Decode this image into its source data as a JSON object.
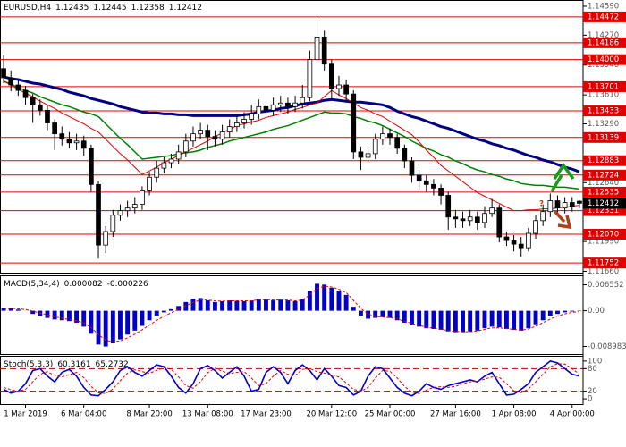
{
  "chart_data": [
    {
      "type": "candlestick",
      "title": "EURUSD,H4",
      "annotation": "?",
      "categories": [
        null,
        null,
        null,
        "1 Mar 2019",
        null,
        null,
        null,
        null,
        null,
        null,
        null,
        "6 Mar 04:00",
        null,
        null,
        null,
        null,
        null,
        null,
        null,
        null,
        "8 Mar 20:00",
        null,
        null,
        null,
        null,
        null,
        null,
        null,
        "13 Mar 08:00",
        null,
        null,
        null,
        null,
        null,
        null,
        null,
        "17 Mar 23:00",
        null,
        null,
        null,
        null,
        null,
        null,
        null,
        null,
        "20 Mar 12:00",
        null,
        null,
        null,
        null,
        null,
        null,
        null,
        "25 Mar 00:00",
        null,
        null,
        null,
        null,
        null,
        null,
        null,
        null,
        "27 Mar 16:00",
        null,
        null,
        null,
        null,
        null,
        null,
        null,
        "1 Apr 08:00",
        null,
        null,
        null,
        null,
        null,
        null,
        null,
        "4 Apr 00:00",
        null
      ],
      "open": [
        1.139,
        1.138,
        1.1372,
        1.1366,
        1.1358,
        1.135,
        1.1344,
        1.133,
        1.1318,
        1.1312,
        1.1308,
        1.131,
        1.1302,
        1.1262,
        1.1195,
        1.121,
        1.1228,
        1.1233,
        1.1236,
        1.124,
        1.1255,
        1.127,
        1.128,
        1.1286,
        1.129,
        1.1298,
        1.131,
        1.1318,
        1.1322,
        1.1315,
        1.1312,
        1.132,
        1.1326,
        1.133,
        1.1334,
        1.134,
        1.1348,
        1.1344,
        1.135,
        1.1352,
        1.1348,
        1.1352,
        1.1358,
        1.14,
        1.1425,
        1.1395,
        1.1368,
        1.1372,
        1.1362,
        1.1298,
        1.1292,
        1.1296,
        1.1312,
        1.1318,
        1.1314,
        1.1302,
        1.1288,
        1.1272,
        1.1266,
        1.1262,
        1.1258,
        1.125,
        1.1226,
        1.1224,
        1.1222,
        1.1226,
        1.122,
        1.123,
        1.1236,
        1.1204,
        1.12,
        1.1196,
        1.1192,
        1.1208,
        1.1222,
        1.1232,
        1.1244,
        1.1236,
        1.1242,
        1.12435
      ],
      "high": [
        1.1405,
        1.1388,
        1.1378,
        1.1371,
        1.1362,
        1.1356,
        1.1349,
        1.1334,
        1.1326,
        1.132,
        1.1318,
        1.1316,
        1.1306,
        1.1266,
        1.1216,
        1.1234,
        1.124,
        1.1244,
        1.1248,
        1.126,
        1.1276,
        1.1288,
        1.1292,
        1.1296,
        1.1306,
        1.1318,
        1.1326,
        1.133,
        1.1328,
        1.1322,
        1.1328,
        1.1334,
        1.1338,
        1.1342,
        1.135,
        1.1356,
        1.1354,
        1.1358,
        1.136,
        1.1358,
        1.136,
        1.1372,
        1.141,
        1.1443,
        1.1432,
        1.14,
        1.1382,
        1.1378,
        1.1366,
        1.1304,
        1.1304,
        1.1318,
        1.1326,
        1.1324,
        1.1318,
        1.1306,
        1.1292,
        1.1278,
        1.1272,
        1.1268,
        1.1262,
        1.1254,
        1.1234,
        1.1232,
        1.1234,
        1.1232,
        1.1238,
        1.1246,
        1.124,
        1.121,
        1.1206,
        1.1204,
        1.1214,
        1.1228,
        1.124,
        1.1252,
        1.125,
        1.1248,
        1.1248,
        1.12445
      ],
      "low": [
        1.1374,
        1.1365,
        1.136,
        1.135,
        1.133,
        1.1338,
        1.1322,
        1.13,
        1.1305,
        1.1302,
        1.13,
        1.1294,
        1.1254,
        1.118,
        1.1186,
        1.1204,
        1.1222,
        1.1226,
        1.123,
        1.1234,
        1.125,
        1.1264,
        1.1274,
        1.128,
        1.1284,
        1.1292,
        1.1304,
        1.1312,
        1.13,
        1.1304,
        1.1306,
        1.1314,
        1.132,
        1.1324,
        1.1328,
        1.1334,
        1.1336,
        1.1338,
        1.1342,
        1.134,
        1.1342,
        1.1346,
        1.1354,
        1.1396,
        1.1388,
        1.1356,
        1.136,
        1.1354,
        1.129,
        1.1278,
        1.1286,
        1.129,
        1.1306,
        1.1306,
        1.1296,
        1.128,
        1.1264,
        1.1256,
        1.1254,
        1.125,
        1.124,
        1.1212,
        1.1214,
        1.1214,
        1.1216,
        1.1212,
        1.1214,
        1.1226,
        1.1198,
        1.1194,
        1.1188,
        1.1182,
        1.1188,
        1.1202,
        1.1216,
        1.1226,
        1.1228,
        1.123,
        1.1232,
        1.12358
      ],
      "close": [
        1.138,
        1.1372,
        1.1366,
        1.1358,
        1.135,
        1.1344,
        1.133,
        1.1318,
        1.1312,
        1.1308,
        1.131,
        1.1302,
        1.1262,
        1.1195,
        1.121,
        1.1228,
        1.1233,
        1.1236,
        1.124,
        1.1255,
        1.127,
        1.128,
        1.1286,
        1.129,
        1.1298,
        1.131,
        1.1318,
        1.1322,
        1.1315,
        1.1312,
        1.132,
        1.1326,
        1.133,
        1.1334,
        1.134,
        1.1348,
        1.1344,
        1.135,
        1.1352,
        1.1348,
        1.1352,
        1.1358,
        1.14,
        1.1425,
        1.1395,
        1.1368,
        1.1372,
        1.1362,
        1.1298,
        1.1292,
        1.1296,
        1.1312,
        1.1318,
        1.1314,
        1.1302,
        1.1288,
        1.1272,
        1.1266,
        1.1262,
        1.1258,
        1.125,
        1.1226,
        1.1224,
        1.1222,
        1.1226,
        1.122,
        1.123,
        1.1236,
        1.1204,
        1.12,
        1.1196,
        1.1192,
        1.1208,
        1.1222,
        1.1232,
        1.1244,
        1.1236,
        1.1242,
        1.1238,
        1.12412
      ],
      "candle_color": "#000000",
      "series": [
        {
          "color": "#000080",
          "width": 3,
          "values": [
            1.1381,
            1.1379,
            1.1378,
            1.1376,
            1.1374,
            1.1373,
            1.1371,
            1.1369,
            1.1367,
            1.1364,
            1.1362,
            1.136,
            1.1357,
            1.1355,
            1.1353,
            1.1351,
            1.1348,
            1.1346,
            1.1344,
            1.1342,
            1.1341,
            1.1341,
            1.134,
            1.134,
            1.1339,
            1.1339,
            1.1338,
            1.1338,
            1.1338,
            1.1338,
            1.1338,
            1.1338,
            1.1338,
            1.1339,
            1.134,
            1.1342,
            1.1343,
            1.1344,
            1.1346,
            1.1347,
            1.1349,
            1.1351,
            1.1352,
            1.1353,
            1.1355,
            1.1356,
            1.1355,
            1.1354,
            1.1353,
            1.1353,
            1.1352,
            1.1351,
            1.135,
            1.1347,
            1.1343,
            1.134,
            1.1337,
            1.1335,
            1.1332,
            1.1329,
            1.1326,
            1.1324,
            1.1321,
            1.1318,
            1.1315,
            1.1312,
            1.131,
            1.1307,
            1.1305,
            1.1302,
            1.13,
            1.1297,
            1.1294,
            1.1292,
            1.1289,
            1.1287,
            1.1284,
            1.1281,
            1.1279,
            1.1276
          ]
        },
        {
          "color": "#008000",
          "width": 1.5,
          "values": [
            1.1376,
            1.1373,
            1.1369,
            1.1366,
            1.1363,
            1.1359,
            1.1356,
            1.1353,
            1.135,
            1.1348,
            1.1345,
            1.1342,
            1.134,
            1.1337,
            1.1329,
            1.1321,
            1.1313,
            1.1306,
            1.1298,
            1.129,
            1.1291,
            1.1292,
            1.1293,
            1.1294,
            1.1296,
            1.1297,
            1.1298,
            1.13,
            1.1303,
            1.1305,
            1.1307,
            1.131,
            1.1312,
            1.1314,
            1.1316,
            1.1318,
            1.132,
            1.1323,
            1.1325,
            1.1327,
            1.133,
            1.1333,
            1.1336,
            1.1339,
            1.1342,
            1.1341,
            1.1341,
            1.134,
            1.1337,
            1.1335,
            1.1332,
            1.133,
            1.1327,
            1.1323,
            1.1319,
            1.1315,
            1.131,
            1.1306,
            1.1302,
            1.1299,
            1.1295,
            1.1292,
            1.1288,
            1.1285,
            1.1281,
            1.1278,
            1.1276,
            1.1273,
            1.1271,
            1.1268,
            1.1266,
            1.1263,
            1.1262,
            1.1261,
            1.1261,
            1.126,
            1.1259,
            1.1259,
            1.1258,
            1.1257
          ]
        },
        {
          "color": "#e00000",
          "width": 1,
          "values": [
            1.1376,
            1.1372,
            1.1367,
            1.1363,
            1.1359,
            1.1354,
            1.135,
            1.1346,
            1.1341,
            1.1337,
            1.1333,
            1.1329,
            1.1324,
            1.132,
            1.1312,
            1.1304,
            1.1296,
            1.1289,
            1.1281,
            1.1273,
            1.1277,
            1.1281,
            1.1286,
            1.129,
            1.1294,
            1.1298,
            1.1302,
            1.1306,
            1.131,
            1.1315,
            1.1319,
            1.1323,
            1.1327,
            1.1329,
            1.1331,
            1.1333,
            1.1336,
            1.1338,
            1.134,
            1.1342,
            1.1345,
            1.1347,
            1.135,
            1.1352,
            1.1359,
            1.1366,
            1.1361,
            1.1357,
            1.1352,
            1.1347,
            1.1344,
            1.134,
            1.1337,
            1.1332,
            1.1327,
            1.1322,
            1.1317,
            1.1309,
            1.13,
            1.1292,
            1.1283,
            1.1277,
            1.1271,
            1.1265,
            1.1259,
            1.1253,
            1.1249,
            1.1245,
            1.1241,
            1.1237,
            1.1233,
            1.1233,
            1.1234,
            1.1234,
            1.1235,
            1.1235,
            1.1236,
            1.1237,
            1.1238,
            1.1239
          ]
        }
      ],
      "ylim": [
        1.11645,
        1.14649
      ],
      "yticks": [
        {
          "value": 1.1459,
          "label": "1.14590"
        },
        {
          "value": 1.1427,
          "label": "1.14270"
        },
        {
          "value": 1.1394,
          "label": "1.13940"
        },
        {
          "value": 1.1361,
          "label": "1.13610"
        },
        {
          "value": 1.1329,
          "label": "1.13290"
        },
        {
          "value": 1.1264,
          "label": "1.12640"
        },
        {
          "value": 1.1199,
          "label": "1.11990"
        },
        {
          "value": 1.1166,
          "label": "1.11660"
        }
      ],
      "levels": [
        {
          "value": 1.14472,
          "label": "1.14472"
        },
        {
          "value": 1.14186,
          "label": "1.14186"
        },
        {
          "value": 1.14,
          "label": "1.14000"
        },
        {
          "value": 1.13701,
          "label": "1.13701"
        },
        {
          "value": 1.13433,
          "label": "1.13433"
        },
        {
          "value": 1.13139,
          "label": "1.13139"
        },
        {
          "value": 1.12883,
          "label": "1.12883"
        },
        {
          "value": 1.12724,
          "label": "1.12724"
        },
        {
          "value": 1.12535,
          "label": "1.12535"
        },
        {
          "value": 1.12331,
          "label": "1.12331"
        },
        {
          "value": 1.1207,
          "label": "1.12070"
        },
        {
          "value": 1.11752,
          "label": "1.11752"
        }
      ],
      "level_color": "#e00000",
      "current_color": "#000000"
    },
    {
      "type": "macd",
      "title": "MACD(5,34,4)",
      "color": "#0000c8",
      "values": [
        0.0008,
        0.0006,
        0.0003,
        0.0,
        -0.0008,
        -0.0014,
        -0.0018,
        -0.0022,
        -0.0024,
        -0.0026,
        -0.003,
        -0.004,
        -0.0058,
        -0.0085,
        -0.009,
        -0.0082,
        -0.0072,
        -0.006,
        -0.005,
        -0.0038,
        -0.0024,
        -0.0012,
        -0.0004,
        0.0004,
        0.0012,
        0.0022,
        0.003,
        0.0032,
        0.0026,
        0.0022,
        0.0024,
        0.0026,
        0.0025,
        0.0024,
        0.0026,
        0.003,
        0.0028,
        0.0026,
        0.0028,
        0.0026,
        0.0024,
        0.003,
        0.005,
        0.0068,
        0.0066,
        0.0058,
        0.005,
        0.004,
        0.001,
        -0.0012,
        -0.002,
        -0.0018,
        -0.0016,
        -0.0018,
        -0.0024,
        -0.003,
        -0.0036,
        -0.004,
        -0.0044,
        -0.0046,
        -0.0048,
        -0.0052,
        -0.0054,
        -0.0054,
        -0.0052,
        -0.005,
        -0.0044,
        -0.004,
        -0.0042,
        -0.0046,
        -0.0048,
        -0.005,
        -0.0044,
        -0.0034,
        -0.0024,
        -0.0014,
        -0.0008,
        -0.0004,
        -0.0002,
        8.2e-05
      ],
      "signal": {
        "color": "#e00000",
        "values": [
          0.0006,
          0.0006,
          0.0005,
          0.0003,
          -0.0001,
          -0.0006,
          -0.001,
          -0.0015,
          -0.0019,
          -0.0022,
          -0.0025,
          -0.0031,
          -0.0042,
          -0.006,
          -0.0074,
          -0.0078,
          -0.0076,
          -0.0068,
          -0.0059,
          -0.0048,
          -0.0036,
          -0.0024,
          -0.0014,
          -0.0005,
          0.0004,
          0.0013,
          0.0021,
          0.0027,
          0.0027,
          0.0025,
          0.0024,
          0.0025,
          0.0025,
          0.0025,
          0.0025,
          0.0028,
          0.0028,
          0.0027,
          0.0027,
          0.0027,
          0.0025,
          0.0027,
          0.004,
          0.0056,
          0.0062,
          0.006,
          0.0054,
          0.0046,
          0.0026,
          0.0006,
          -0.0008,
          -0.0014,
          -0.0016,
          -0.0017,
          -0.0021,
          -0.0026,
          -0.0032,
          -0.0037,
          -0.0041,
          -0.0044,
          -0.0047,
          -0.005,
          -0.0052,
          -0.0053,
          -0.0053,
          -0.0051,
          -0.0047,
          -0.0043,
          -0.0043,
          -0.0045,
          -0.0047,
          -0.0049,
          -0.0046,
          -0.0039,
          -0.003,
          -0.0021,
          -0.0013,
          -0.0008,
          -0.0004,
          -0.000226
        ]
      },
      "ylim": [
        -0.0109,
        0.0087
      ],
      "yticks": [
        0.006552,
        {
          "value": 0,
          "label": "0.00"
        },
        -0.008983
      ]
    },
    {
      "type": "stoch",
      "title": "Stoch(5,3,3)",
      "series": [
        {
          "color": "#0000c8",
          "values": [
            25,
            15,
            20,
            40,
            75,
            80,
            60,
            45,
            70,
            78,
            60,
            30,
            10,
            8,
            25,
            45,
            75,
            85,
            70,
            60,
            75,
            90,
            85,
            60,
            30,
            15,
            40,
            80,
            88,
            75,
            55,
            70,
            85,
            60,
            20,
            25,
            70,
            85,
            70,
            40,
            75,
            90,
            75,
            50,
            80,
            60,
            35,
            30,
            10,
            20,
            60,
            85,
            80,
            55,
            30,
            15,
            8,
            20,
            40,
            30,
            25,
            35,
            40,
            45,
            50,
            45,
            60,
            70,
            40,
            10,
            12,
            25,
            40,
            70,
            85,
            100,
            95,
            80,
            65,
            60.3161
          ]
        },
        {
          "color": "#e00000",
          "dashed": true,
          "values": [
            30,
            24,
            20,
            25,
            45,
            65,
            72,
            62,
            58,
            64,
            70,
            56,
            33,
            16,
            14,
            26,
            48,
            68,
            77,
            72,
            68,
            75,
            83,
            78,
            58,
            35,
            28,
            45,
            69,
            81,
            73,
            67,
            70,
            72,
            55,
            35,
            40,
            60,
            75,
            65,
            62,
            78,
            80,
            72,
            68,
            63,
            58,
            42,
            25,
            20,
            30,
            55,
            75,
            73,
            55,
            33,
            18,
            14,
            23,
            30,
            32,
            30,
            33,
            40,
            45,
            47,
            52,
            58,
            57,
            40,
            21,
            16,
            26,
            45,
            65,
            85,
            93,
            92,
            80,
            65.2732
          ]
        }
      ],
      "ylim": [
        -14,
        111.6
      ],
      "yticks": [
        100,
        80,
        20,
        0
      ],
      "levels": [
        80,
        20
      ],
      "level_color": "#c00000"
    }
  ]
}
